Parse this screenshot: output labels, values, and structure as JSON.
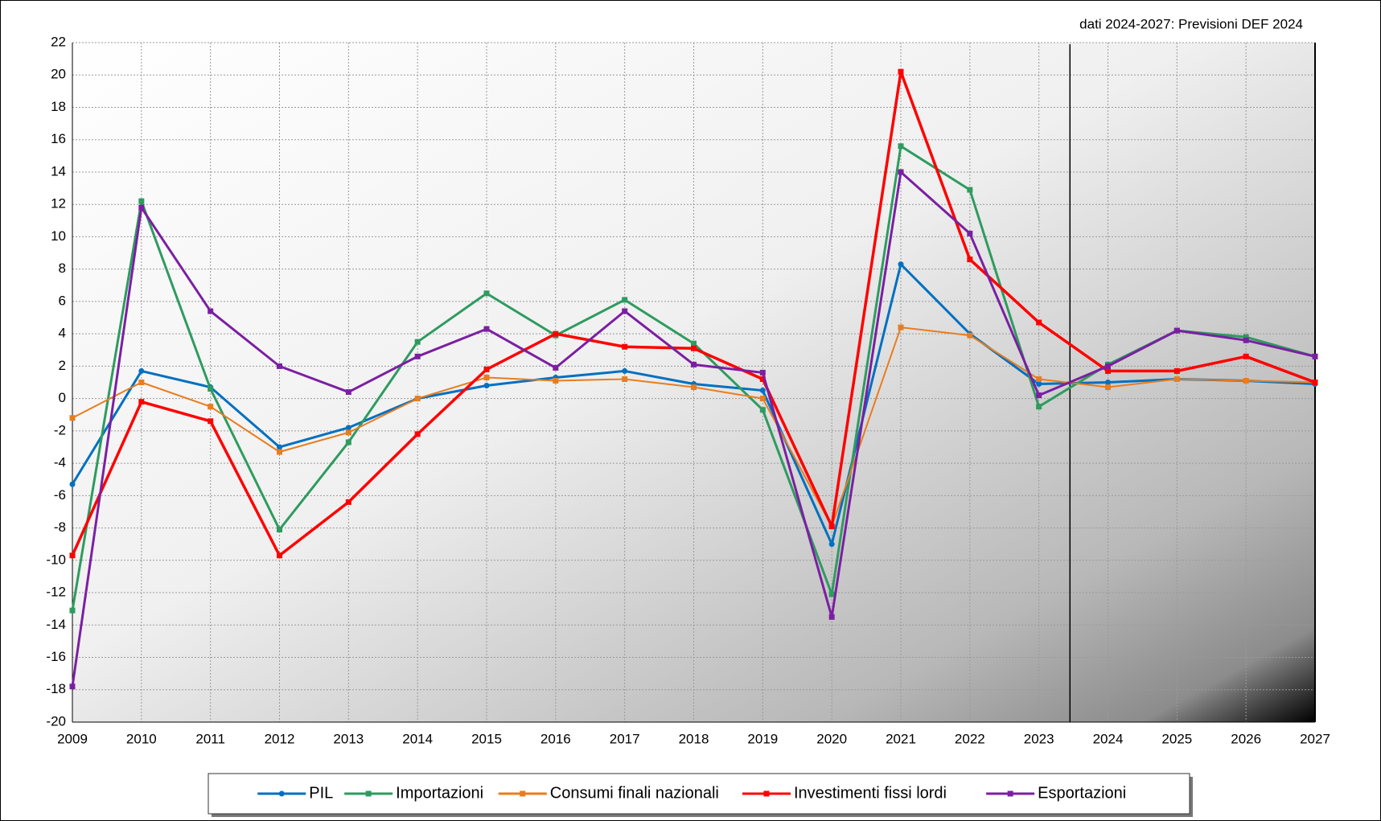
{
  "chart_data": {
    "type": "line",
    "annotation": "dati 2024-2027: Previsioni DEF 2024",
    "categories": [
      "2009",
      "2010",
      "2011",
      "2012",
      "2013",
      "2014",
      "2015",
      "2016",
      "2017",
      "2018",
      "2019",
      "2020",
      "2021",
      "2022",
      "2023",
      "2024",
      "2025",
      "2026",
      "2027"
    ],
    "series": [
      {
        "name": "PIL",
        "color": "#0070c0",
        "marker": "circle",
        "values": [
          -5.3,
          1.7,
          0.7,
          -3.0,
          -1.8,
          0.0,
          0.8,
          1.3,
          1.7,
          0.9,
          0.5,
          -9.0,
          8.3,
          4.0,
          0.9,
          1.0,
          1.2,
          1.1,
          0.9
        ]
      },
      {
        "name": "Importazioni",
        "color": "#2e9b5f",
        "marker": "square",
        "values": [
          -13.1,
          12.2,
          0.6,
          -8.1,
          -2.7,
          3.5,
          6.5,
          3.9,
          6.1,
          3.4,
          -0.7,
          -12.1,
          15.6,
          12.9,
          -0.5,
          2.1,
          4.2,
          3.8,
          2.6
        ]
      },
      {
        "name": "Consumi finali nazionali",
        "color": "#e87d1e",
        "marker": "square",
        "values": [
          -1.2,
          1.0,
          -0.5,
          -3.3,
          -2.1,
          0.0,
          1.3,
          1.1,
          1.2,
          0.7,
          0.0,
          -7.9,
          4.4,
          3.9,
          1.2,
          0.7,
          1.2,
          1.1,
          1.0
        ]
      },
      {
        "name": "Investimenti fissi lordi",
        "color": "#ff0000",
        "marker": "square",
        "values": [
          -9.7,
          -0.2,
          -1.4,
          -9.7,
          -6.4,
          -2.2,
          1.8,
          4.0,
          3.2,
          3.1,
          1.2,
          -7.9,
          20.2,
          8.6,
          4.7,
          1.7,
          1.7,
          2.6,
          1.0
        ]
      },
      {
        "name": "Esportazioni",
        "color": "#7b1fa2",
        "marker": "square",
        "values": [
          -17.8,
          11.8,
          5.4,
          2.0,
          0.4,
          2.6,
          4.3,
          1.9,
          5.4,
          2.1,
          1.6,
          -13.5,
          14.0,
          10.2,
          0.2,
          2.0,
          4.2,
          3.6,
          2.6
        ]
      }
    ],
    "ylim": [
      -20,
      22
    ],
    "yticks": [
      -20,
      -18,
      -16,
      -14,
      -12,
      -10,
      -8,
      -6,
      -4,
      -2,
      0,
      2,
      4,
      6,
      8,
      10,
      12,
      14,
      16,
      18,
      20,
      22
    ],
    "grid": true,
    "legend": "bottom"
  }
}
